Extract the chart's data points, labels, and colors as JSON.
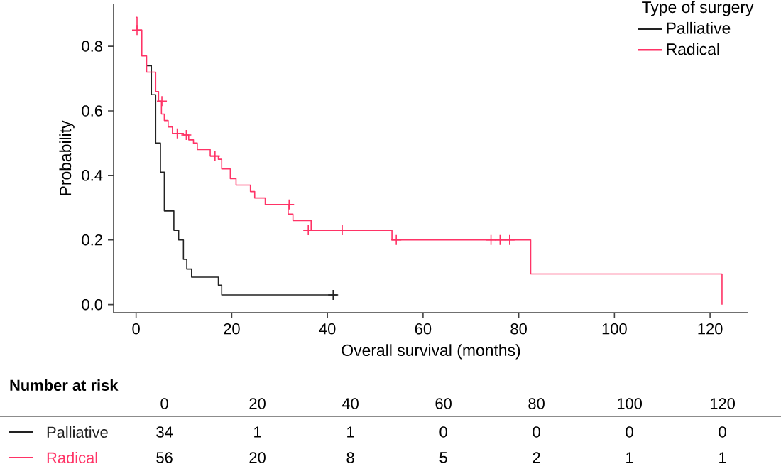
{
  "chart_data": [
    {
      "type": "step",
      "xlabel": "Overall survival (months)",
      "ylabel": "Probability",
      "legend_title": "Type of surgery",
      "legend": "top right",
      "xlim": [
        -4.7,
        128
      ],
      "ylim": [
        -0.025,
        0.93
      ],
      "xticks": [
        0,
        20,
        40,
        60,
        80,
        100,
        120
      ],
      "yticks": [
        {
          "value": 0,
          "label": "0.0"
        },
        0.2,
        0.4,
        0.6,
        0.8
      ],
      "series": [
        {
          "name": "Palliative",
          "color": "#222222",
          "x": [
            2.2,
            3.2,
            4.1,
            5.1,
            5.9,
            7.9,
            8.9,
            9.9,
            10.6,
            11.6,
            17.2,
            17.9,
            42.1
          ],
          "values": [
            0.74,
            0.65,
            0.5,
            0.41,
            0.29,
            0.23,
            0.2,
            0.14,
            0.11,
            0.085,
            0.06,
            0.03,
            0.03
          ]
        },
        {
          "name": "Radical",
          "color": "#ff3366",
          "x": [
            0,
            0.2,
            1.2,
            2.2,
            4.1,
            4.7,
            5.3,
            5.9,
            6.7,
            7.6,
            9.9,
            11,
            12,
            12.8,
            15.5,
            17.2,
            17.9,
            19.7,
            20.9,
            23.9,
            24.8,
            27,
            31.8,
            32.8,
            36.6,
            53.5,
            82.5,
            122.5
          ],
          "values": [
            0.89,
            0.85,
            0.77,
            0.72,
            0.66,
            0.63,
            0.59,
            0.57,
            0.55,
            0.53,
            0.525,
            0.51,
            0.5,
            0.48,
            0.46,
            0.45,
            0.42,
            0.39,
            0.37,
            0.35,
            0.33,
            0.31,
            0.28,
            0.26,
            0.23,
            0.2,
            0.095,
            0
          ]
        },
        {
          "type": "scatter",
          "marker": "cross",
          "color": "#222222",
          "x": [
            41.2
          ],
          "values": [
            0.03
          ]
        },
        {
          "type": "scatter",
          "marker": "cross",
          "color": "#ff3366",
          "x": [
            0.2,
            5.4,
            8.6,
            10.5,
            16.5,
            32,
            36,
            43.1,
            54.4,
            74.2,
            76.1,
            78.1
          ],
          "values": [
            0.85,
            0.63,
            0.53,
            0.525,
            0.46,
            0.31,
            0.23,
            0.23,
            0.2,
            0.2,
            0.2,
            0.2
          ]
        }
      ]
    },
    {
      "type": "other",
      "title": "Number at risk",
      "categories": [
        "0",
        "20",
        "40",
        "60",
        "80",
        "100",
        "120"
      ],
      "data_labels": true,
      "series": [
        {
          "name": "Palliative",
          "color": "#222222",
          "values": [
            34,
            1,
            1,
            0,
            0,
            0,
            0
          ]
        },
        {
          "name": "Radical",
          "color": "#ff3366",
          "values": [
            56,
            20,
            8,
            5,
            2,
            1,
            1
          ]
        }
      ]
    }
  ]
}
